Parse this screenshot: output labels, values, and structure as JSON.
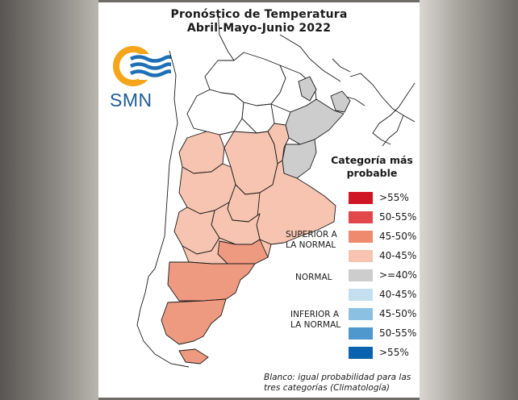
{
  "title": "Pronóstico de Temperatura",
  "subtitle": "Abril-Mayo-Junio 2022",
  "logo": {
    "text": "SMN",
    "colors": {
      "sun": "#f5a51a",
      "waves": "#1e6fb5"
    }
  },
  "legend": {
    "title": "Categoría más probable",
    "groups": {
      "superior": "SUPERIOR A LA NORMAL",
      "normal": "NORMAL",
      "inferior": "INFERIOR A LA NORMAL"
    },
    "items": [
      {
        "label": ">55%",
        "color": "#cf1424"
      },
      {
        "label": "50-55%",
        "color": "#e2474b"
      },
      {
        "label": "45-50%",
        "color": "#ee8a6e"
      },
      {
        "label": "40-45%",
        "color": "#f6c4b0"
      },
      {
        "label": ">=40%",
        "color": "#cdcdcd"
      },
      {
        "label": "40-45%",
        "color": "#c4dff0"
      },
      {
        "label": "45-50%",
        "color": "#8cc0e2"
      },
      {
        "label": "50-55%",
        "color": "#4e98cd"
      },
      {
        "label": ">55%",
        "color": "#0a63ae"
      }
    ]
  },
  "footnote": "Blanco: igual probabilidad para las tres categorías (Climatología)",
  "map": {
    "colors": {
      "superior_40_45": "#f6c4b0",
      "superior_45_50": "#ee9a80",
      "normal": "#cdcdcd",
      "climatology": "#ffffff"
    }
  }
}
